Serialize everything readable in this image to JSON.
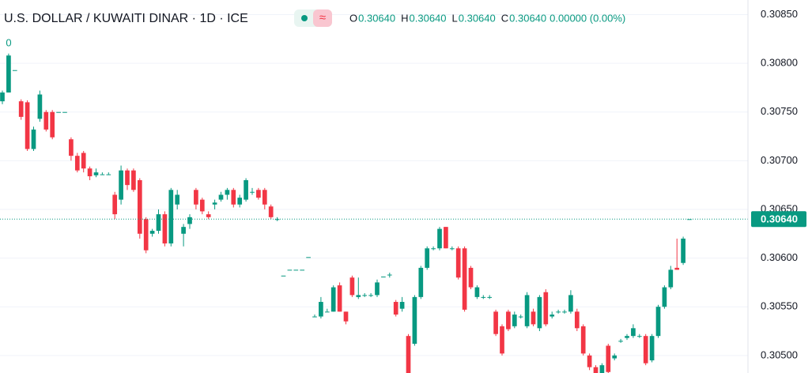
{
  "chart_data": {
    "type": "candlestick",
    "title": "U.S. DOLLAR / KUWAITI DINAR · 1D · ICE",
    "legend_values": [
      {
        "key": "O",
        "text": "0.30640"
      },
      {
        "key": "H",
        "text": "0.30640"
      },
      {
        "key": "L",
        "text": "0.30640"
      },
      {
        "key": "C",
        "text": "0.30640"
      }
    ],
    "change_text": "0.00000 (0.00%)",
    "corner_label": "0",
    "up_color": "#089981",
    "down_color": "#f23645",
    "ylim": [
      0.30482,
      0.30865
    ],
    "yticks": [
      {
        "value": 0.305,
        "label": "0.30500"
      },
      {
        "value": 0.3055,
        "label": "0.30550"
      },
      {
        "value": 0.306,
        "label": "0.30600"
      },
      {
        "value": 0.3065,
        "label": "0.30650"
      },
      {
        "value": 0.307,
        "label": "0.30700"
      },
      {
        "value": 0.3075,
        "label": "0.30750"
      },
      {
        "value": 0.308,
        "label": "0.30800"
      },
      {
        "value": 0.3085,
        "label": "0.30850"
      }
    ],
    "last_price": {
      "value": 0.3064,
      "label": "0.30640"
    },
    "grid": true,
    "values": [
      [
        0.30761,
        0.30772,
        0.30758,
        0.3077
      ],
      [
        0.3077,
        0.3081,
        0.3077,
        0.30808
      ],
      [
        0.30793,
        0.30793,
        0.30793,
        0.30793
      ],
      [
        0.30761,
        0.30763,
        0.30742,
        0.30745
      ],
      [
        0.3076,
        0.30762,
        0.3071,
        0.30712
      ],
      [
        0.30712,
        0.30735,
        0.3071,
        0.30732
      ],
      [
        0.30743,
        0.30772,
        0.3074,
        0.30768
      ],
      [
        0.3075,
        0.30752,
        0.3073,
        0.30732
      ],
      [
        0.3075,
        0.30752,
        0.30722,
        0.30724
      ],
      [
        0.3075,
        0.3075,
        0.3075,
        0.3075
      ],
      [
        0.3075,
        0.3075,
        0.3075,
        0.3075
      ],
      [
        0.30722,
        0.30724,
        0.307,
        0.30705
      ],
      [
        0.30705,
        0.30708,
        0.30688,
        0.3069
      ],
      [
        0.30708,
        0.3071,
        0.30688,
        0.30692
      ],
      [
        0.30692,
        0.30694,
        0.3068,
        0.30684
      ],
      [
        0.30685,
        0.30692,
        0.30683,
        0.30688
      ],
      [
        0.30686,
        0.30688,
        0.30686,
        0.30686
      ],
      [
        0.30686,
        0.30688,
        0.30686,
        0.30686
      ],
      [
        0.30665,
        0.30668,
        0.3064,
        0.30645
      ],
      [
        0.3066,
        0.30695,
        0.30655,
        0.3069
      ],
      [
        0.3069,
        0.30692,
        0.3067,
        0.30675
      ],
      [
        0.3069,
        0.30692,
        0.30668,
        0.3067
      ],
      [
        0.3068,
        0.30682,
        0.3062,
        0.30625
      ],
      [
        0.3064,
        0.30642,
        0.30605,
        0.30608
      ],
      [
        0.30625,
        0.3063,
        0.30622,
        0.30628
      ],
      [
        0.30628,
        0.3065,
        0.30625,
        0.30645
      ],
      [
        0.30645,
        0.30648,
        0.30612,
        0.30615
      ],
      [
        0.30615,
        0.30672,
        0.30612,
        0.3067
      ],
      [
        0.30655,
        0.3067,
        0.3065,
        0.30665
      ],
      [
        0.30625,
        0.30635,
        0.30612,
        0.30632
      ],
      [
        0.30635,
        0.30645,
        0.3063,
        0.30642
      ],
      [
        0.3067,
        0.30672,
        0.3065,
        0.30655
      ],
      [
        0.3066,
        0.30662,
        0.30645,
        0.30648
      ],
      [
        0.30645,
        0.30648,
        0.3064,
        0.30642
      ],
      [
        0.30655,
        0.3066,
        0.3065,
        0.30657
      ],
      [
        0.3066,
        0.30668,
        0.30658,
        0.30665
      ],
      [
        0.30665,
        0.30672,
        0.3066,
        0.3067
      ],
      [
        0.3067,
        0.30672,
        0.30652,
        0.30655
      ],
      [
        0.30655,
        0.30665,
        0.30652,
        0.30662
      ],
      [
        0.3066,
        0.30682,
        0.30658,
        0.3068
      ],
      [
        0.30668,
        0.30672,
        0.30665,
        0.30668
      ],
      [
        0.3067,
        0.30672,
        0.3066,
        0.30662
      ],
      [
        0.3067,
        0.30672,
        0.3065,
        0.30655
      ],
      [
        0.30653,
        0.30655,
        0.3064,
        0.30642
      ],
      [
        0.3064,
        0.30642,
        0.30638,
        0.3064
      ],
      [
        0.30582,
        0.30582,
        0.30582,
        0.30582
      ],
      [
        0.30588,
        0.30588,
        0.30588,
        0.30588
      ],
      [
        0.30588,
        0.30588,
        0.30588,
        0.30588
      ],
      [
        0.30588,
        0.30588,
        0.30588,
        0.30588
      ],
      [
        0.30601,
        0.30601,
        0.30601,
        0.30601
      ],
      [
        0.3054,
        0.30542,
        0.3054,
        0.3054
      ],
      [
        0.3054,
        0.3056,
        0.30538,
        0.30555
      ],
      [
        0.30545,
        0.30548,
        0.30545,
        0.30545
      ],
      [
        0.30545,
        0.30572,
        0.30545,
        0.3057
      ],
      [
        0.30572,
        0.30575,
        0.30545,
        0.30545
      ],
      [
        0.30545,
        0.30545,
        0.30532,
        0.30535
      ],
      [
        0.3058,
        0.30582,
        0.3056,
        0.30562
      ],
      [
        0.3056,
        0.3058,
        0.30558,
        0.30562
      ],
      [
        0.30562,
        0.30564,
        0.3056,
        0.30562
      ],
      [
        0.30562,
        0.30564,
        0.3056,
        0.30562
      ],
      [
        0.30562,
        0.30578,
        0.3056,
        0.30575
      ],
      [
        0.30581,
        0.30581,
        0.30581,
        0.30581
      ],
      [
        0.30583,
        0.30585,
        0.3058,
        0.30583
      ],
      [
        0.30555,
        0.30557,
        0.3054,
        0.30542
      ],
      [
        0.30548,
        0.3056,
        0.30545,
        0.30555
      ],
      [
        0.3052,
        0.30522,
        0.30482,
        0.30482
      ],
      [
        0.30512,
        0.30562,
        0.3051,
        0.3056
      ],
      [
        0.3056,
        0.30592,
        0.30558,
        0.3059
      ],
      [
        0.3059,
        0.30612,
        0.30588,
        0.3061
      ],
      [
        0.3061,
        0.30612,
        0.30608,
        0.3061
      ],
      [
        0.3061,
        0.30632,
        0.30608,
        0.3063
      ],
      [
        0.30632,
        0.30632,
        0.3061,
        0.3061
      ],
      [
        0.3061,
        0.30612,
        0.30608,
        0.3061
      ],
      [
        0.3061,
        0.30612,
        0.30578,
        0.3058
      ],
      [
        0.3061,
        0.30612,
        0.30545,
        0.30547
      ],
      [
        0.3059,
        0.30592,
        0.30568,
        0.3057
      ],
      [
        0.3056,
        0.30572,
        0.30558,
        0.3057
      ],
      [
        0.3056,
        0.30562,
        0.30558,
        0.3056
      ],
      [
        0.3056,
        0.30562,
        0.30558,
        0.3056
      ],
      [
        0.30545,
        0.30547,
        0.3052,
        0.30522
      ],
      [
        0.3053,
        0.30532,
        0.305,
        0.30502
      ],
      [
        0.30545,
        0.30547,
        0.30525,
        0.30527
      ],
      [
        0.3053,
        0.30545,
        0.30528,
        0.30542
      ],
      [
        0.3054,
        0.30542,
        0.30538,
        0.3054
      ],
      [
        0.3053,
        0.30565,
        0.30528,
        0.30562
      ],
      [
        0.30545,
        0.30548,
        0.3053,
        0.30532
      ],
      [
        0.30528,
        0.30562,
        0.30525,
        0.3056
      ],
      [
        0.30565,
        0.30568,
        0.3053,
        0.30532
      ],
      [
        0.3054,
        0.30545,
        0.30538,
        0.30542
      ],
      [
        0.30545,
        0.30547,
        0.30543,
        0.30545
      ],
      [
        0.30545,
        0.30547,
        0.30543,
        0.30545
      ],
      [
        0.30545,
        0.30567,
        0.30543,
        0.30562
      ],
      [
        0.30545,
        0.30548,
        0.30525,
        0.30528
      ],
      [
        0.3053,
        0.30532,
        0.305,
        0.30502
      ],
      [
        0.305,
        0.30502,
        0.30485,
        0.30488
      ],
      [
        0.30488,
        0.3049,
        0.30482,
        0.30482
      ],
      [
        0.30482,
        0.30492,
        0.30482,
        0.3049
      ],
      [
        0.3051,
        0.30512,
        0.30482,
        0.30483
      ],
      [
        0.30497,
        0.30502,
        0.30495,
        0.305
      ],
      [
        0.30515,
        0.30517,
        0.30513,
        0.30515
      ],
      [
        0.30518,
        0.30522,
        0.30516,
        0.3052
      ],
      [
        0.3052,
        0.30532,
        0.30518,
        0.30528
      ],
      [
        0.3052,
        0.30522,
        0.30518,
        0.3052
      ],
      [
        0.3052,
        0.30522,
        0.3049,
        0.30492
      ],
      [
        0.30495,
        0.30522,
        0.30493,
        0.3052
      ],
      [
        0.3052,
        0.30552,
        0.30518,
        0.3055
      ],
      [
        0.3055,
        0.30572,
        0.30548,
        0.3057
      ],
      [
        0.3057,
        0.30592,
        0.30568,
        0.30588
      ],
      [
        0.3059,
        0.3062,
        0.30588,
        0.30588
      ],
      [
        0.30595,
        0.30622,
        0.30593,
        0.3062
      ],
      [
        0.3064,
        0.3064,
        0.3064,
        0.3064
      ]
    ]
  }
}
